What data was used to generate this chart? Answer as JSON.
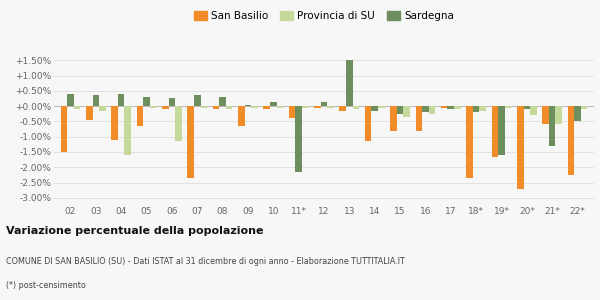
{
  "categories": [
    "02",
    "03",
    "04",
    "05",
    "06",
    "07",
    "08",
    "09",
    "10",
    "11*",
    "12",
    "13",
    "14",
    "15",
    "16",
    "17",
    "18*",
    "19*",
    "20*",
    "21*",
    "22*"
  ],
  "san_basilio": [
    -0.015,
    -0.0045,
    -0.011,
    -0.0065,
    -0.001,
    -0.0235,
    -0.001,
    -0.0065,
    -0.001,
    -0.004,
    -0.0005,
    -0.0015,
    -0.0115,
    -0.008,
    -0.008,
    -0.0005,
    -0.0235,
    -0.0165,
    -0.027,
    -0.006,
    -0.0225
  ],
  "sardegna": [
    0.004,
    0.0035,
    0.004,
    0.003,
    0.0025,
    0.0035,
    0.003,
    0.0005,
    0.0015,
    -0.0215,
    0.0015,
    0.015,
    -0.0015,
    -0.0025,
    -0.002,
    -0.001,
    -0.002,
    -0.016,
    -0.001,
    -0.013,
    -0.005
  ],
  "provincia": [
    -0.001,
    -0.0015,
    -0.016,
    -0.0005,
    -0.0115,
    -0.0005,
    -0.001,
    -0.0005,
    -0.0005,
    -0.0005,
    -0.0005,
    -0.001,
    -0.0005,
    -0.0035,
    -0.0025,
    -0.001,
    -0.0015,
    -0.0005,
    -0.003,
    -0.006,
    -0.001
  ],
  "color_san_basilio": "#f28c28",
  "color_provincia": "#c5d99a",
  "color_sardegna": "#6d8f5e",
  "background_color": "#f7f7f7",
  "title": "Variazione percentuale della popolazione",
  "subtitle": "COMUNE DI SAN BASILIO (SU) - Dati ISTAT al 31 dicembre di ogni anno - Elaborazione TUTTITALIA.IT",
  "footnote": "(*) post-censimento",
  "ylim": [
    -0.032,
    0.019
  ],
  "yticks": [
    -0.03,
    -0.025,
    -0.02,
    -0.015,
    -0.01,
    -0.005,
    0.0,
    0.005,
    0.01,
    0.015
  ],
  "bar_width": 0.26
}
